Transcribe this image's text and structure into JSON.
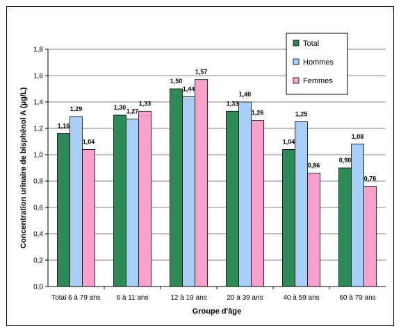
{
  "chart_data": {
    "type": "bar",
    "categories": [
      "Total 6 à 79 ans",
      "6 à 11 ans",
      "12 à 19 ans",
      "20 à 39 ans",
      "40 à 59 ans",
      "60 à 79 ans"
    ],
    "series": [
      {
        "name": "Total",
        "values": [
          1.16,
          1.3,
          1.5,
          1.33,
          1.04,
          0.9
        ],
        "labels": [
          "1,16",
          "1,30",
          "1,50",
          "1,33",
          "1,04",
          "0,90"
        ],
        "color": "#2e8b57"
      },
      {
        "name": "Hommes",
        "values": [
          1.29,
          1.27,
          1.44,
          1.4,
          1.25,
          1.08
        ],
        "labels": [
          "1,29",
          "1,27",
          "1,44",
          "1,40",
          "1,25",
          "1,08"
        ],
        "color": "#a9cff6"
      },
      {
        "name": "Femmes",
        "values": [
          1.04,
          1.33,
          1.57,
          1.26,
          0.86,
          0.76
        ],
        "labels": [
          "1,04",
          "1,33",
          "1,57",
          "1,26",
          "0,86",
          "0,76"
        ],
        "color": "#f7a0cc"
      }
    ],
    "xlabel": "Groupe d'âge",
    "ylabel": "Concentration urinaire de bisphénol A (µg/L)",
    "ylim": [
      0,
      1.8
    ],
    "yticks": [
      "0,0",
      "0,2",
      "0,4",
      "0,6",
      "0,8",
      "1,0",
      "1,2",
      "1,4",
      "1,6",
      "1,8"
    ],
    "grid": true,
    "legend_position": "top-right"
  }
}
